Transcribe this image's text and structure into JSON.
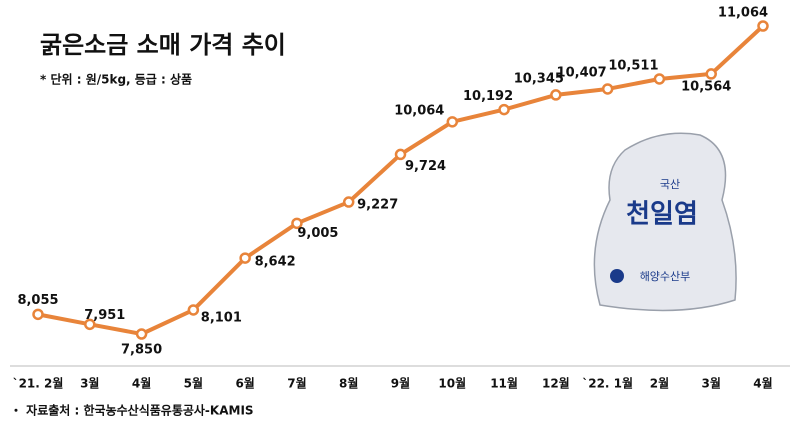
{
  "chart_data": {
    "type": "line",
    "title": "굵은소금 소매 가격 추이",
    "subtitle": "* 단위 : 원/5kg, 등급 : 상품",
    "source": "・ 자료출처 : 한국농수산식품유통공사-KAMIS",
    "categories": [
      "`21. 2월",
      "3월",
      "4월",
      "5월",
      "6월",
      "7월",
      "8월",
      "9월",
      "10월",
      "11월",
      "12월",
      "`22. 1월",
      "2월",
      "3월",
      "4월"
    ],
    "series": [
      {
        "color": "#e8843a",
        "values": [
          8055,
          7951,
          7850,
          8101,
          8642,
          9005,
          9227,
          9724,
          10064,
          10192,
          10345,
          10407,
          10511,
          10564,
          11064
        ],
        "value_labels": [
          "8,055",
          "7,951",
          "7,850",
          "8,101",
          "8,642",
          "9,005",
          "9,227",
          "9,724",
          "10,064",
          "10,192",
          "10,345",
          "10,407",
          "10,511",
          "10,564",
          "11,064"
        ]
      }
    ]
  },
  "image": {
    "labels": [
      "국산",
      "천일염",
      "해양수산부"
    ]
  }
}
